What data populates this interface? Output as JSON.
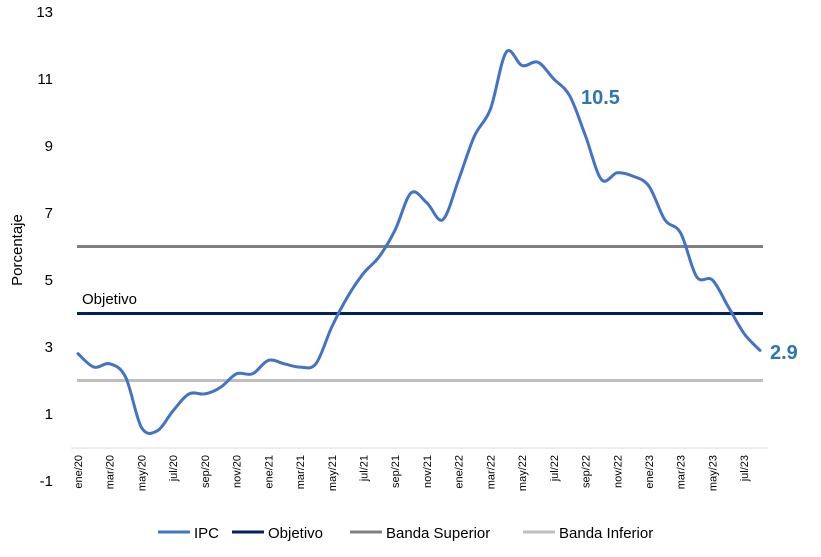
{
  "chart_data": {
    "type": "line",
    "title": "",
    "xlabel": "",
    "ylabel": "Porcentaje",
    "ylim": [
      -1,
      13
    ],
    "yticks": [
      -1,
      1,
      3,
      5,
      7,
      9,
      11,
      13
    ],
    "xtick_labels": [
      "ene/20",
      "mar/20",
      "may/20",
      "jul/20",
      "sep/20",
      "nov/20",
      "ene/21",
      "mar/21",
      "may/21",
      "jul/21",
      "sep/21",
      "nov/21",
      "ene/22",
      "mar/22",
      "may/22",
      "jul/22",
      "sep/22",
      "nov/22",
      "ene/23",
      "mar/23",
      "may/23",
      "jul/23"
    ],
    "grid": false,
    "legend_position": "bottom",
    "series": [
      {
        "name": "IPC",
        "color": "#4472C4",
        "values": [
          2.8,
          2.4,
          2.5,
          2.1,
          0.6,
          0.5,
          1.1,
          1.6,
          1.6,
          1.8,
          2.2,
          2.2,
          2.6,
          2.5,
          2.4,
          2.5,
          3.6,
          4.5,
          5.2,
          5.7,
          6.5,
          7.6,
          7.3,
          6.8,
          8.0,
          9.3,
          10.1,
          11.8,
          11.4,
          11.5,
          11.0,
          10.5,
          9.3,
          8.0,
          8.2,
          8.1,
          7.8,
          6.8,
          6.4,
          5.1,
          5.0,
          4.2,
          3.4,
          2.9
        ]
      },
      {
        "name": "Objetivo",
        "color": "#002060",
        "values": [
          4
        ]
      },
      {
        "name": "Banda Superior",
        "color": "#808080",
        "values": [
          6
        ]
      },
      {
        "name": "Banda Inferior",
        "color": "#BFBFBF",
        "values": [
          2
        ]
      }
    ],
    "annotations": [
      {
        "text": "Objetivo",
        "series": "Objetivo"
      },
      {
        "text": "10.5",
        "series": "IPC",
        "color": "#2E75B6"
      },
      {
        "text": "2.9",
        "series": "IPC",
        "color": "#2E75B6"
      }
    ]
  }
}
